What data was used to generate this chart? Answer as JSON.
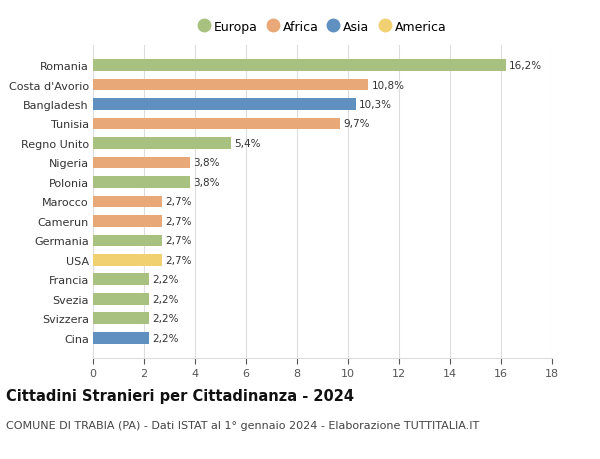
{
  "countries": [
    "Cina",
    "Svizzera",
    "Svezia",
    "Francia",
    "USA",
    "Germania",
    "Camerun",
    "Marocco",
    "Polonia",
    "Nigeria",
    "Regno Unito",
    "Tunisia",
    "Bangladesh",
    "Costa d'Avorio",
    "Romania"
  ],
  "values": [
    2.2,
    2.2,
    2.2,
    2.2,
    2.7,
    2.7,
    2.7,
    2.7,
    3.8,
    3.8,
    5.4,
    9.7,
    10.3,
    10.8,
    16.2
  ],
  "labels": [
    "2,2%",
    "2,2%",
    "2,2%",
    "2,2%",
    "2,7%",
    "2,7%",
    "2,7%",
    "2,7%",
    "3,8%",
    "3,8%",
    "5,4%",
    "9,7%",
    "10,3%",
    "10,8%",
    "16,2%"
  ],
  "continents": [
    "Asia",
    "Europa",
    "Europa",
    "Europa",
    "America",
    "Europa",
    "Africa",
    "Africa",
    "Europa",
    "Africa",
    "Europa",
    "Africa",
    "Asia",
    "Africa",
    "Europa"
  ],
  "continent_colors": {
    "Europa": "#a8c080",
    "Africa": "#e8a878",
    "Asia": "#6090c0",
    "America": "#f0d070"
  },
  "legend_items": [
    "Europa",
    "Africa",
    "Asia",
    "America"
  ],
  "legend_colors": [
    "#a8c080",
    "#e8a878",
    "#6090c0",
    "#f0d070"
  ],
  "xlim": [
    0,
    18
  ],
  "xticks": [
    0,
    2,
    4,
    6,
    8,
    10,
    12,
    14,
    16,
    18
  ],
  "title": "Cittadini Stranieri per Cittadinanza - 2024",
  "subtitle": "COMUNE DI TRABIA (PA) - Dati ISTAT al 1° gennaio 2024 - Elaborazione TUTTITALIA.IT",
  "title_fontsize": 10.5,
  "subtitle_fontsize": 8,
  "bar_height": 0.6,
  "label_fontsize": 7.5,
  "tick_fontsize": 8,
  "legend_fontsize": 9,
  "grid_color": "#dddddd",
  "background_color": "#ffffff"
}
